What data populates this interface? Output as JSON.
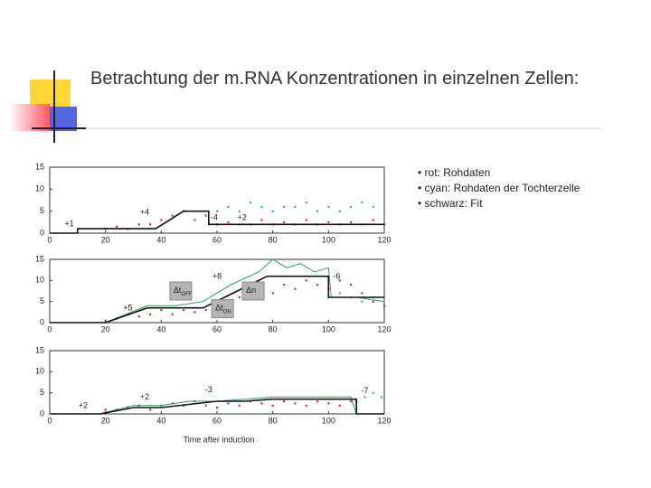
{
  "title": "Betrachtung der m.RNA Konzentrationen in einzelnen Zellen:",
  "legend": [
    "rot: Rohdaten",
    "cyan: Rohdaten der Tochterzelle",
    "schwarz: Fit"
  ],
  "chart_data": [
    {
      "type": "line",
      "xlim": [
        0,
        120
      ],
      "ylim": [
        0,
        15
      ],
      "xticks": [
        0,
        20,
        40,
        60,
        80,
        100,
        120
      ],
      "yticks": [
        0,
        5,
        10,
        15
      ],
      "annotations": [
        "+1",
        "+4",
        "-4",
        "+2"
      ],
      "series": [
        {
          "color": "#cc3333",
          "mode": "markers",
          "x": [
            20,
            24,
            28,
            32,
            36,
            40,
            44,
            48,
            52,
            56,
            60,
            64,
            68,
            72,
            76,
            80,
            84,
            88,
            92,
            96,
            100,
            104,
            108,
            112,
            116,
            120
          ],
          "values": [
            1,
            1.5,
            1,
            2,
            2,
            3,
            4,
            5,
            3,
            4,
            2,
            2.5,
            2,
            2,
            3,
            2,
            2.5,
            2,
            3,
            2,
            2.5,
            2,
            2.5,
            2,
            3,
            2
          ]
        },
        {
          "color": "#33aacc",
          "mode": "markers",
          "x": [
            60,
            64,
            68,
            72,
            76,
            80,
            84,
            88,
            92,
            96,
            100,
            104,
            108,
            112,
            116,
            120
          ],
          "values": [
            5,
            6,
            5,
            7,
            6,
            5,
            6,
            6,
            7,
            5,
            6,
            5,
            6,
            7,
            6,
            5
          ]
        },
        {
          "color": "#111111",
          "mode": "line",
          "x": [
            0,
            10,
            10,
            38,
            48,
            57,
            57,
            120
          ],
          "values": [
            0,
            0,
            1,
            1,
            5,
            5,
            2,
            2
          ]
        }
      ]
    },
    {
      "type": "line",
      "xlim": [
        0,
        120
      ],
      "ylim": [
        0,
        15
      ],
      "xticks": [
        0,
        20,
        40,
        60,
        80,
        100,
        120
      ],
      "yticks": [
        0,
        5,
        10,
        15
      ],
      "annotations": [
        "+5",
        "+8",
        "-6"
      ],
      "boxes": [
        {
          "text": "Δt",
          "sub": "OFF"
        },
        {
          "text": "Δn"
        },
        {
          "text": "Δt",
          "sub": "ON"
        }
      ],
      "series": [
        {
          "color": "#cc3333",
          "mode": "markers",
          "x": [
            20,
            24,
            28,
            32,
            36,
            40,
            44,
            48,
            52,
            56,
            60,
            64,
            68,
            72,
            76,
            80,
            84,
            88,
            92,
            96,
            100,
            104,
            108,
            112,
            116,
            120
          ],
          "values": [
            0.5,
            1,
            2,
            1.5,
            2,
            3,
            2,
            3,
            2.5,
            3,
            4,
            5,
            6,
            7,
            8,
            7,
            9,
            8,
            10,
            9,
            8,
            10,
            9,
            7,
            5,
            4
          ]
        },
        {
          "color": "#33aacc",
          "mode": "markers",
          "x": [
            100,
            104,
            108,
            112,
            116,
            120
          ],
          "values": [
            6,
            7,
            6,
            5,
            6,
            7
          ]
        },
        {
          "color": "#339966",
          "mode": "line",
          "x": [
            0,
            20,
            35,
            45,
            55,
            65,
            75,
            80,
            85,
            90,
            95,
            100,
            101,
            110,
            120
          ],
          "values": [
            0,
            0,
            4,
            4,
            5,
            9,
            12,
            15,
            13,
            14,
            12,
            13,
            6,
            6,
            5
          ]
        },
        {
          "color": "#111111",
          "mode": "line",
          "x": [
            0,
            20,
            35,
            55,
            78,
            100,
            100,
            120
          ],
          "values": [
            0,
            0,
            3.5,
            3.5,
            11,
            11,
            6,
            6
          ]
        }
      ]
    },
    {
      "type": "line",
      "xlim": [
        0,
        120
      ],
      "ylim": [
        0,
        15
      ],
      "xticks": [
        0,
        20,
        40,
        60,
        80,
        100,
        120
      ],
      "yticks": [
        0,
        5,
        10,
        15
      ],
      "xlabel": "Time after induction",
      "annotations": [
        "+2",
        "+2",
        "-3",
        "-7"
      ],
      "series": [
        {
          "color": "#cc3333",
          "mode": "markers",
          "x": [
            20,
            24,
            28,
            32,
            36,
            40,
            44,
            48,
            52,
            56,
            60,
            64,
            68,
            72,
            76,
            80,
            84,
            88,
            92,
            96,
            100,
            104,
            108
          ],
          "values": [
            1,
            1,
            1.5,
            2,
            1,
            2,
            2.5,
            2,
            3,
            2,
            1.5,
            2.5,
            2,
            3,
            2.5,
            2,
            3,
            2.5,
            2,
            3,
            2.5,
            2,
            3
          ]
        },
        {
          "color": "#33aacc",
          "mode": "markers",
          "x": [
            110,
            113,
            116,
            119
          ],
          "values": [
            3,
            4,
            5,
            4
          ]
        },
        {
          "color": "#339966",
          "mode": "line",
          "x": [
            0,
            18,
            30,
            40,
            50,
            60,
            70,
            80,
            90,
            100,
            108,
            110,
            120
          ],
          "values": [
            0,
            0,
            2,
            2,
            3,
            3,
            3.5,
            4,
            4,
            4,
            4,
            0,
            0
          ]
        },
        {
          "color": "#111111",
          "mode": "line",
          "x": [
            0,
            18,
            30,
            40,
            60,
            70,
            80,
            110,
            110,
            120
          ],
          "values": [
            0,
            0,
            1.5,
            1.5,
            3,
            3,
            3.5,
            3.5,
            0,
            0
          ]
        }
      ]
    }
  ]
}
